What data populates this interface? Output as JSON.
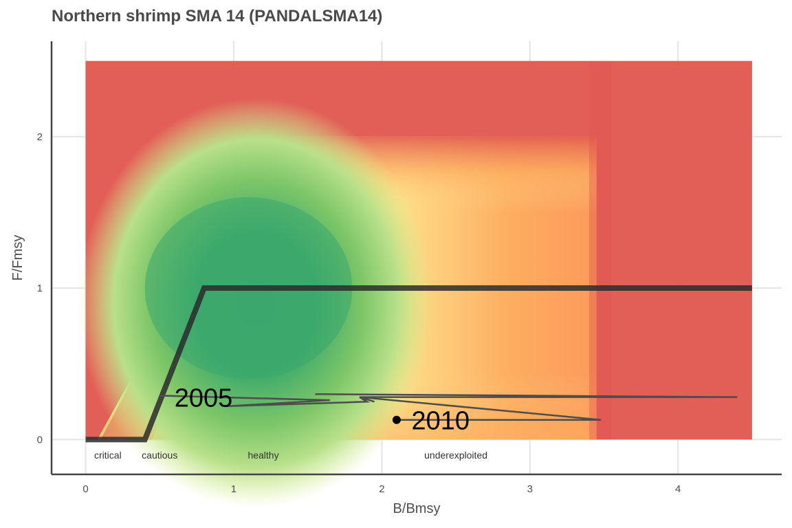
{
  "chart_data": {
    "type": "line",
    "title": "Northern shrimp SMA 14 (PANDALSMA14)",
    "xlabel": "B/Bmsy",
    "ylabel": "F/Fmsy",
    "xlim": [
      -0.23,
      4.7
    ],
    "ylim": [
      -0.23,
      2.63
    ],
    "x_ticks": [
      0,
      1,
      2,
      3,
      4
    ],
    "y_ticks": [
      0,
      1,
      2
    ],
    "grid": true,
    "background_extent": {
      "x": [
        0,
        4.5
      ],
      "y": [
        0,
        2.5
      ]
    },
    "control_rule": {
      "name": "",
      "x": [
        0,
        0.4,
        0.8,
        4.5
      ],
      "y": [
        0,
        0,
        1,
        1
      ]
    },
    "zones": [
      {
        "label": "critical",
        "x": 0.15
      },
      {
        "label": "cautious",
        "x": 0.5
      },
      {
        "label": "healthy",
        "x": 1.2
      },
      {
        "label": "underexploited",
        "x": 2.5
      }
    ],
    "series": [
      {
        "name": "",
        "x": [
          0.5,
          1.65,
          0.95,
          1.9,
          1.85,
          3.48,
          2.1
        ],
        "y": [
          0.29,
          0.26,
          0.22,
          0.25,
          0.28,
          0.13,
          0.13
        ]
      },
      {
        "name": "",
        "x": [
          1.55,
          4.4,
          1.85,
          1.95
        ],
        "y": [
          0.3,
          0.28,
          0.28,
          0.25
        ]
      }
    ],
    "annotations": [
      {
        "text": "2005",
        "x": 0.6,
        "y": 0.28
      },
      {
        "text": "2010",
        "x": 2.2,
        "y": 0.13
      }
    ],
    "current_point": {
      "x": 2.1,
      "y": 0.13
    },
    "colors": {
      "red": "#e0564f",
      "orange": "#fdae61",
      "yellow": "#fee08b",
      "light_green": "#d9ef8b",
      "green": "#66bd63",
      "dark_green": "#3aa76d",
      "rule_line": "#2b2b2b",
      "trajectory": "#4d4d4d",
      "grid": "#e4e4e4",
      "axis": "#444444"
    }
  }
}
